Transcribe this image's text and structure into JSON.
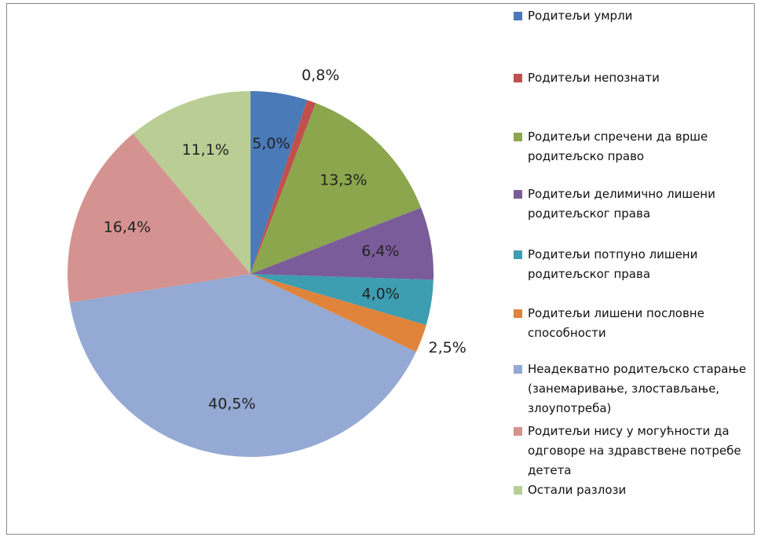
{
  "chart_data": {
    "type": "pie",
    "categories": [
      "Родитељи умрли",
      "Родитељи непознати",
      "Родитељи спречени да врше родитељско право",
      "Родитељи делимично лишени родитељског права",
      "Родитељи потпуно лишени родитељског права",
      "Родитељи лишени пословне способности",
      "Неадекватно родитељско старање (занемаривање, злостављање, злоупотреба)",
      "Родитељи нису у могућности да одговоре на здравствене потребе детета",
      "Остали разлози"
    ],
    "values": [
      5.0,
      0.8,
      13.3,
      6.4,
      4.0,
      2.5,
      40.5,
      16.4,
      11.1
    ],
    "value_labels": [
      "5,0%",
      "0,8%",
      "13,3%",
      "6,4%",
      "4,0%",
      "2,5%",
      "40,5%",
      "16,4%",
      "11,1%"
    ],
    "colors": [
      "#4a7ab7",
      "#c0504d",
      "#8ba64c",
      "#7a5c9a",
      "#3d9db1",
      "#e0843c",
      "#94a9d3",
      "#d49290",
      "#b9cd95"
    ],
    "legend": "right"
  }
}
